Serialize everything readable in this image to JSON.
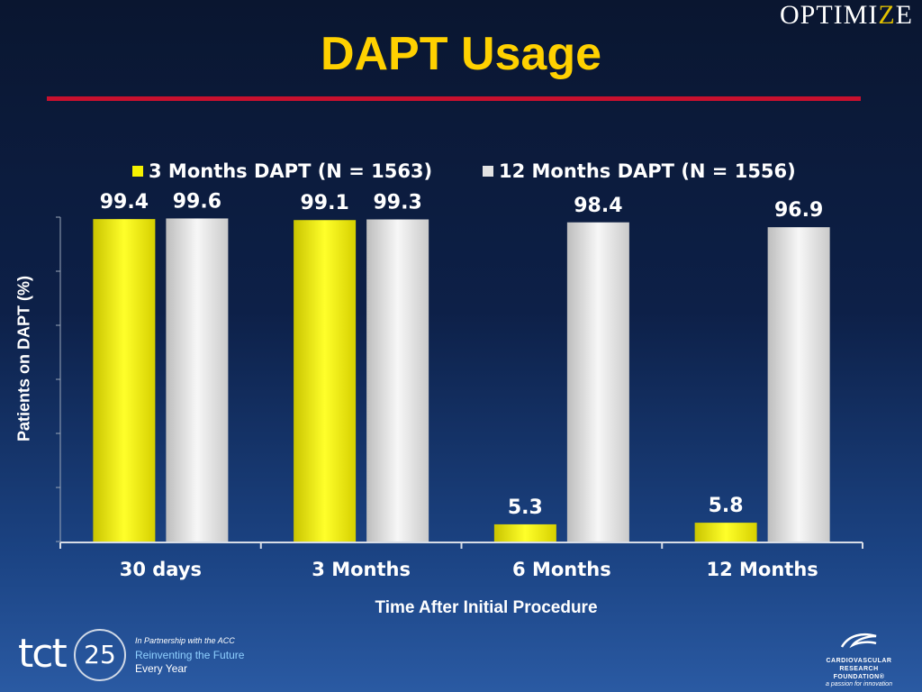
{
  "header": {
    "title": "DAPT Usage",
    "brand_logo_pre": "O",
    "brand_logo_mid": "PTIMI",
    "brand_logo_accent": "Z",
    "brand_logo_post": "E"
  },
  "colors": {
    "title": "#ffd100",
    "rule": "#c8102e",
    "series_3mo": "#f5f100",
    "series_12mo": "#e2e2e2"
  },
  "chart_data": {
    "type": "bar",
    "categories": [
      "30 days",
      "3 Months",
      "6 Months",
      "12 Months"
    ],
    "series": [
      {
        "name": "3 Months DAPT (N = 1563)",
        "values": [
          99.4,
          99.1,
          5.3,
          5.8
        ],
        "color": "#f5f100"
      },
      {
        "name": "12 Months DAPT (N = 1556)",
        "values": [
          99.6,
          99.3,
          98.4,
          96.9
        ],
        "color": "#e2e2e2"
      }
    ],
    "data_labels": [
      [
        "99.4",
        "99.1",
        "5.3",
        "5.8"
      ],
      [
        "99.6",
        "99.3",
        "98.4",
        "96.9"
      ]
    ],
    "xlabel": "Time After Initial Procedure",
    "ylabel": "Patients on DAPT (%)",
    "ylim": [
      0,
      100
    ],
    "legend": "top-center",
    "grid": false
  },
  "footer": {
    "tct": "tct",
    "tct_number": "25",
    "partnership": "In Partnership with the ACC",
    "tagline": "Reinventing the Future",
    "subtagline": "Every Year",
    "crf_name_1": "CARDIOVASCULAR",
    "crf_name_2": "RESEARCH FOUNDATION®",
    "crf_tagline": "a passion for innovation"
  }
}
